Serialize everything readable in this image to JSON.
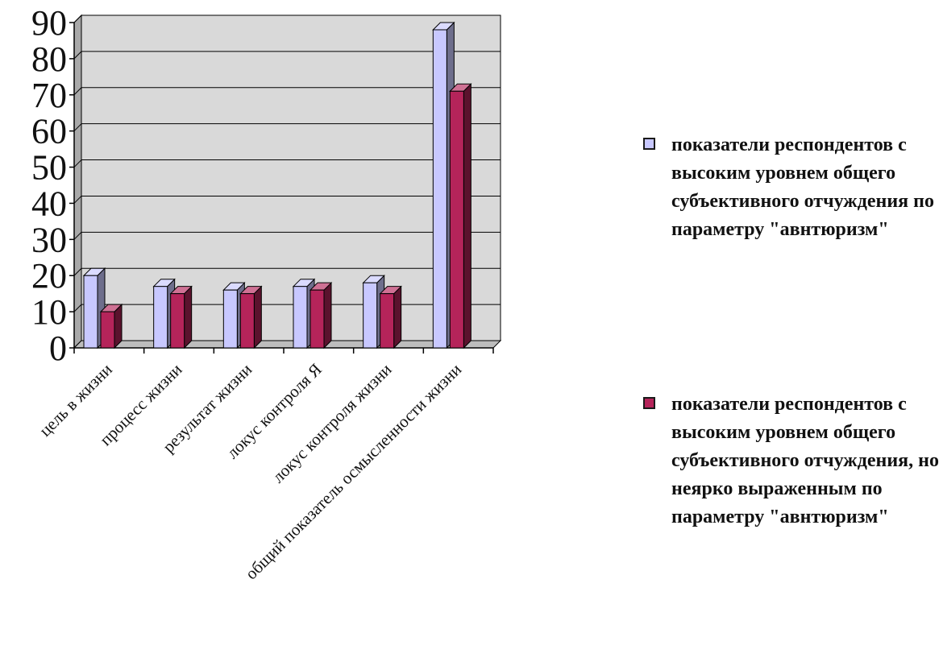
{
  "chart_data": {
    "type": "bar",
    "categories": [
      "цель в жизни",
      "процесс жизни",
      "результат жизни",
      "локус контроля Я",
      "локус контроля жизни",
      "общий показатель осмысленности жизни"
    ],
    "series": [
      {
        "name": "показатели респондентов с высоким уровнем общего субъективного отчуждения по параметру \"авнтюризм\"",
        "values": [
          20,
          17,
          16,
          17,
          18,
          88
        ],
        "color": "#c8c8ff"
      },
      {
        "name": "показатели респондентов с высоким уровнем общего субъективного отчуждения, но неярко выраженным по параметру \"авнтюризм\"",
        "values": [
          10,
          15,
          15,
          16,
          15,
          71
        ],
        "color": "#b5245a"
      }
    ],
    "ylim": [
      0,
      90
    ],
    "yticks": [
      0,
      10,
      20,
      30,
      40,
      50,
      60,
      70,
      80,
      90
    ],
    "grid": true,
    "legend_position": "right",
    "style": "3d-clustered-columns",
    "plot_background": "#d9d9d9"
  }
}
